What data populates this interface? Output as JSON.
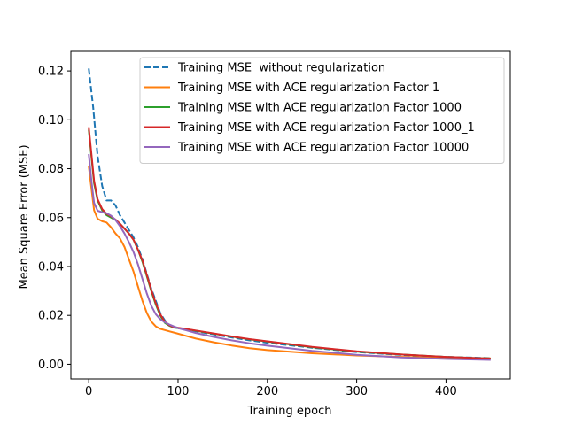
{
  "chart_data": {
    "type": "line",
    "title": "",
    "xlabel": "Training epoch",
    "ylabel": "Mean Square Error (MSE)",
    "xlim": [
      -20,
      472
    ],
    "ylim": [
      -0.006,
      0.128
    ],
    "xticks": [
      0,
      100,
      200,
      300,
      400
    ],
    "yticks": [
      0.0,
      0.02,
      0.04,
      0.06,
      0.08,
      0.1,
      0.12
    ],
    "ytick_labels": [
      "0.00",
      "0.02",
      "0.04",
      "0.06",
      "0.08",
      "0.10",
      "0.12"
    ],
    "grid": false,
    "legend_position": "top-right",
    "series": [
      {
        "name": "Training MSE  without regularization",
        "color": "#1f77b4",
        "dashed": true,
        "x": [
          0,
          5,
          10,
          15,
          20,
          25,
          30,
          35,
          40,
          45,
          50,
          55,
          60,
          65,
          70,
          75,
          80,
          85,
          90,
          95,
          100,
          110,
          120,
          140,
          160,
          180,
          200,
          250,
          300,
          350,
          400,
          450
        ],
        "y": [
          0.121,
          0.105,
          0.085,
          0.073,
          0.067,
          0.067,
          0.065,
          0.061,
          0.058,
          0.055,
          0.052,
          0.048,
          0.043,
          0.037,
          0.031,
          0.026,
          0.021,
          0.018,
          0.016,
          0.0155,
          0.0148,
          0.0142,
          0.0135,
          0.0122,
          0.011,
          0.0098,
          0.0088,
          0.0068,
          0.005,
          0.0038,
          0.003,
          0.0025
        ]
      },
      {
        "name": "Training MSE with ACE regularization Factor 1",
        "color": "#ff7f0e",
        "dashed": false,
        "x": [
          0,
          3,
          6,
          10,
          15,
          20,
          25,
          30,
          35,
          40,
          45,
          50,
          55,
          60,
          65,
          70,
          75,
          80,
          85,
          90,
          95,
          100,
          110,
          120,
          140,
          160,
          180,
          200,
          250,
          300,
          350,
          400,
          450
        ],
        "y": [
          0.081,
          0.072,
          0.063,
          0.0595,
          0.0585,
          0.058,
          0.056,
          0.0535,
          0.0515,
          0.048,
          0.043,
          0.038,
          0.032,
          0.026,
          0.021,
          0.0175,
          0.0155,
          0.0145,
          0.014,
          0.0135,
          0.013,
          0.0125,
          0.0115,
          0.0105,
          0.009,
          0.0077,
          0.0066,
          0.0058,
          0.0045,
          0.0036,
          0.003,
          0.0026,
          0.0024
        ]
      },
      {
        "name": "Training MSE with ACE regularization Factor 1000",
        "color": "#2ca02c",
        "dashed": false,
        "x": [
          0,
          3,
          6,
          10,
          15,
          20,
          25,
          30,
          35,
          40,
          45,
          50,
          55,
          60,
          65,
          70,
          75,
          80,
          85,
          90,
          95,
          100,
          110,
          120,
          140,
          160,
          180,
          200,
          250,
          300,
          350,
          400,
          450
        ],
        "y": [
          0.096,
          0.085,
          0.074,
          0.067,
          0.063,
          0.061,
          0.06,
          0.059,
          0.0575,
          0.0555,
          0.0535,
          0.051,
          0.047,
          0.042,
          0.036,
          0.03,
          0.0245,
          0.02,
          0.017,
          0.0158,
          0.015,
          0.0148,
          0.0143,
          0.0137,
          0.0125,
          0.0113,
          0.0102,
          0.0093,
          0.007,
          0.0052,
          0.004,
          0.003,
          0.0023
        ]
      },
      {
        "name": "Training MSE with ACE regularization Factor 1000_1",
        "color": "#d62728",
        "dashed": false,
        "x": [
          0,
          3,
          6,
          10,
          15,
          20,
          25,
          30,
          35,
          40,
          45,
          50,
          55,
          60,
          65,
          70,
          75,
          80,
          85,
          90,
          95,
          100,
          110,
          120,
          140,
          160,
          180,
          200,
          250,
          300,
          350,
          400,
          450
        ],
        "y": [
          0.097,
          0.086,
          0.075,
          0.0675,
          0.0635,
          0.0615,
          0.0605,
          0.0592,
          0.0575,
          0.0555,
          0.0535,
          0.051,
          0.047,
          0.0425,
          0.0365,
          0.0305,
          0.025,
          0.0205,
          0.0175,
          0.016,
          0.0152,
          0.0149,
          0.0144,
          0.0138,
          0.0126,
          0.0114,
          0.0103,
          0.0094,
          0.0071,
          0.0053,
          0.004,
          0.003,
          0.0023
        ]
      },
      {
        "name": "Training MSE with ACE regularization Factor 10000",
        "color": "#9467bd",
        "dashed": false,
        "x": [
          0,
          3,
          6,
          10,
          15,
          20,
          25,
          30,
          35,
          40,
          45,
          50,
          55,
          60,
          65,
          70,
          75,
          80,
          85,
          90,
          95,
          100,
          110,
          120,
          140,
          160,
          180,
          200,
          250,
          300,
          350,
          400,
          450
        ],
        "y": [
          0.086,
          0.075,
          0.066,
          0.0628,
          0.0622,
          0.0618,
          0.0608,
          0.059,
          0.0565,
          0.0535,
          0.05,
          0.046,
          0.041,
          0.035,
          0.029,
          0.024,
          0.0205,
          0.0185,
          0.0172,
          0.0163,
          0.0155,
          0.0148,
          0.0138,
          0.0128,
          0.0112,
          0.0098,
          0.0086,
          0.0076,
          0.0055,
          0.0039,
          0.0028,
          0.0022,
          0.0018
        ]
      }
    ]
  }
}
